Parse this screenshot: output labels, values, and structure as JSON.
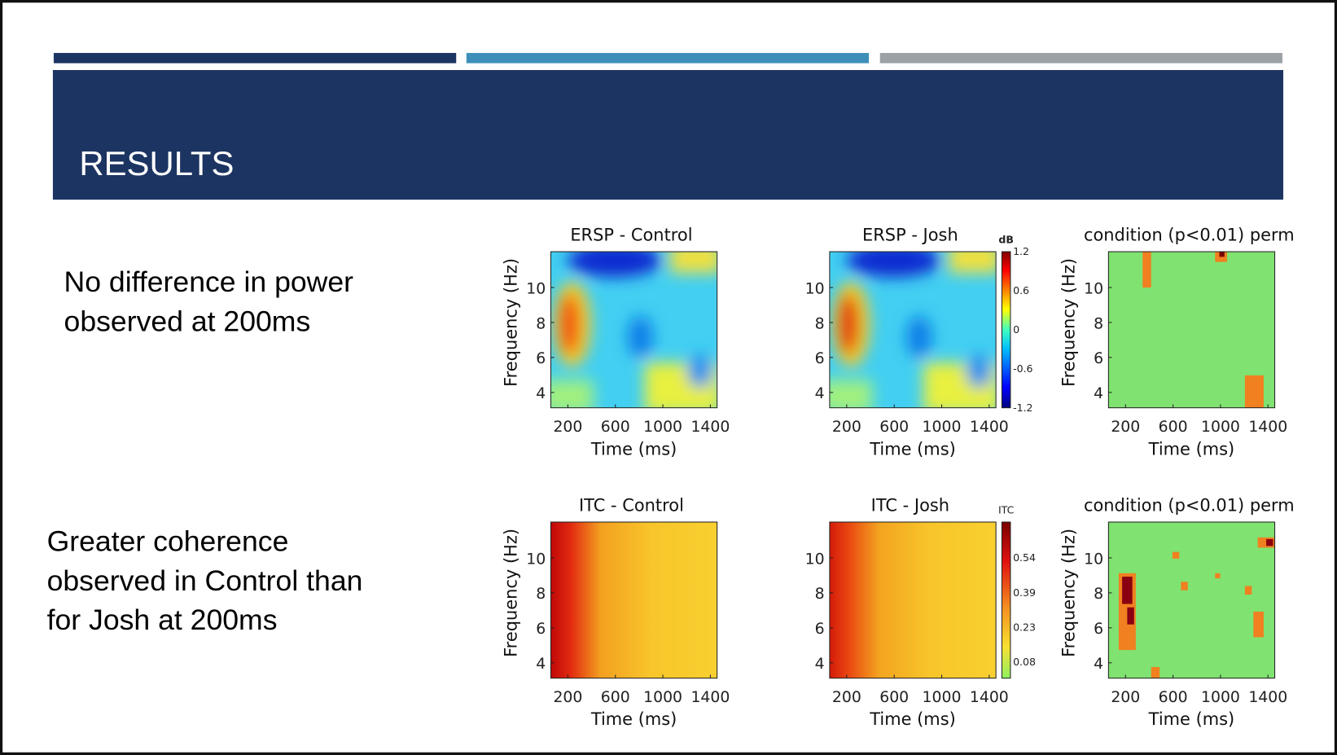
{
  "header": {
    "title": "RESULTS"
  },
  "rows": [
    {
      "text": [
        "No difference in power",
        "observed at 200ms"
      ],
      "panels": [
        {
          "title": "ERSP - Control",
          "ylabel": "Frequency (Hz)",
          "yticks": [
            10,
            8,
            6,
            4
          ],
          "xticks": [
            200,
            600,
            1000,
            1400
          ],
          "xlabel": "Time (ms)"
        },
        {
          "title": "ERSP - Josh",
          "ylabel": "",
          "yticks": [
            10,
            8,
            6,
            4
          ],
          "xticks": [
            200,
            600,
            1000,
            1400
          ],
          "xlabel": "Time (ms)"
        },
        {
          "title": "condition (p<0.01) perm",
          "ylabel": "Frequency (Hz)",
          "yticks": [
            10,
            8,
            6,
            4
          ],
          "xticks": [
            200,
            600,
            1000,
            1400
          ],
          "xlabel": "Time (ms)"
        }
      ],
      "colorbar": {
        "label": "dB",
        "ticks": [
          1.2,
          0.6,
          0,
          -0.6,
          -1.2
        ]
      }
    },
    {
      "text": [
        "Greater coherence",
        "observed in Control than",
        "for Josh at 200ms"
      ],
      "panels": [
        {
          "title": "ITC - Control",
          "ylabel": "Frequency (Hz)",
          "yticks": [
            10,
            8,
            6,
            4
          ],
          "xticks": [
            200,
            600,
            1000,
            1400
          ],
          "xlabel": "Time (ms)"
        },
        {
          "title": "ITC - Josh",
          "ylabel": "",
          "yticks": [
            10,
            8,
            6,
            4
          ],
          "xticks": [
            200,
            600,
            1000,
            1400
          ],
          "xlabel": "Time (ms)"
        },
        {
          "title": "condition (p<0.01) perm",
          "ylabel": "Frequency (Hz)",
          "yticks": [
            10,
            8,
            6,
            4
          ],
          "xticks": [
            200,
            600,
            1000,
            1400
          ],
          "xlabel": "Time (ms)"
        }
      ],
      "colorbar": {
        "label": "ITC",
        "ticks": [
          0.54,
          0.39,
          0.23,
          0.08
        ]
      }
    }
  ]
}
